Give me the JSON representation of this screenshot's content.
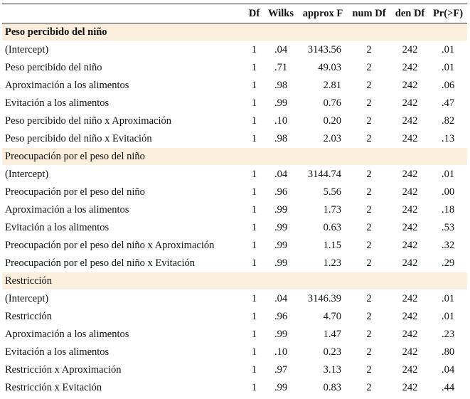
{
  "table": {
    "header": [
      "",
      "Df",
      "Wilks",
      "approx F",
      "num Df",
      "den Df",
      "Pr(>F)"
    ],
    "sections": [
      {
        "title": "Peso percibido del niño",
        "rows": [
          [
            "(Intercept)",
            "1",
            ".04",
            "3143.56",
            "2",
            "242",
            ".01"
          ],
          [
            "Peso percibido del niño",
            "1",
            ".71",
            "49.03",
            "2",
            "242",
            ".01"
          ],
          [
            "Aproximación a los alimentos",
            "1",
            ".98",
            "2.81",
            "2",
            "242",
            ".06"
          ],
          [
            "Evitación a los alimentos",
            "1",
            ".99",
            "0.76",
            "2",
            "242",
            ".47"
          ],
          [
            "Peso percibido del niño x Aproximación",
            "1",
            ".10",
            "0.20",
            "2",
            "242",
            ".82"
          ],
          [
            "Peso percibido del niño x Evitación",
            "1",
            ".98",
            "2.03",
            "2",
            "242",
            ".13"
          ]
        ]
      },
      {
        "title": "Preocupación por el peso del niño",
        "rows": [
          [
            "(Intercept)",
            "1",
            ".04",
            "3144.74",
            "2",
            "242",
            ".01"
          ],
          [
            "Preocupación por el peso del niño",
            "1",
            ".96",
            "5.56",
            "2",
            "242",
            ".00"
          ],
          [
            "Aproximación a los alimentos",
            "1",
            ".99",
            "1.73",
            "2",
            "242",
            ".18"
          ],
          [
            "Evitación a los alimentos",
            "1",
            ".99",
            "0.63",
            "2",
            "242",
            ".53"
          ],
          [
            "Preocupación por el peso del niño x Aproximación",
            "1",
            ".99",
            "1.15",
            "2",
            "242",
            ".32"
          ],
          [
            "Preocupación por el peso del niño x Evitación",
            "1",
            ".99",
            "1.23",
            "2",
            "242",
            ".29"
          ]
        ]
      },
      {
        "title": "Restricción",
        "rows": [
          [
            "(Intercept)",
            "1",
            ".04",
            "3146.39",
            "2",
            "242",
            ".01"
          ],
          [
            "Restricción",
            "1",
            ".96",
            "4.70",
            "2",
            "242",
            ".01"
          ],
          [
            "Aproximación a los alimentos",
            "1",
            ".99",
            "1.47",
            "2",
            "242",
            ".23"
          ],
          [
            "Evitación a los alimentos",
            "1",
            ".10",
            "0.23",
            "2",
            "242",
            ".80"
          ],
          [
            "Restricción x Aproximación",
            "1",
            ".97",
            "3.13",
            "2",
            "242",
            ".04"
          ],
          [
            "Restricción x Evitación",
            "1",
            ".99",
            "0.83",
            "2",
            "242",
            ".44"
          ]
        ]
      }
    ]
  }
}
